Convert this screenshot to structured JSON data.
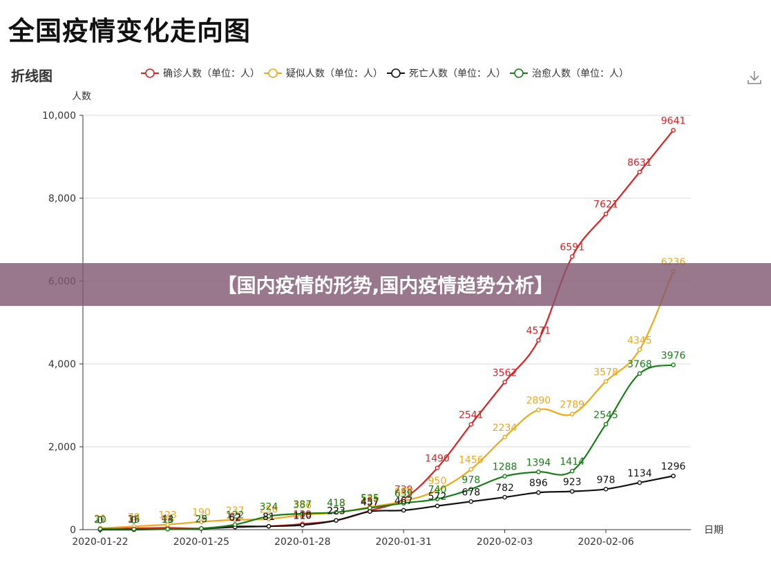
{
  "page_title": "全国疫情变化走向图",
  "banner_text": "【国内疫情的形势,国内疫情趋势分析】",
  "icons": {
    "download": "download-icon"
  },
  "chart_data": {
    "type": "line",
    "title": "折线图",
    "ylabel": "人数",
    "xlabel": "日期",
    "ylim": [
      0,
      10000
    ],
    "yticks": [
      0,
      2000,
      4000,
      6000,
      8000,
      10000
    ],
    "ytick_labels": [
      "0",
      "2,000",
      "4,000",
      "6,000",
      "8,000",
      "10,000"
    ],
    "x": [
      "2020-01-22",
      "2020-01-23",
      "2020-01-24",
      "2020-01-25",
      "2020-01-26",
      "2020-01-27",
      "2020-01-28",
      "2020-01-29",
      "2020-01-30",
      "2020-01-31",
      "2020-02-01",
      "2020-02-02",
      "2020-02-03",
      "2020-02-04",
      "2020-02-05",
      "2020-02-06",
      "2020-02-07",
      "2020-02-08"
    ],
    "x_tick_labels": [
      "2020-01-22",
      "2020-01-25",
      "2020-01-28",
      "2020-01-31",
      "2020-02-03",
      "2020-02-06"
    ],
    "x_tick_indices": [
      0,
      3,
      6,
      9,
      12,
      15
    ],
    "legend_position": "top-center",
    "grid": true,
    "series": [
      {
        "name": "确诊人数（单位：人）",
        "color": "#e01f1f",
        "values": [
          31,
          34,
          44,
          29,
          82,
          81,
          139,
          223,
          457,
          739,
          1490,
          2541,
          3562,
          4571,
          6591,
          7621,
          8631,
          9641
        ]
      },
      {
        "name": "疑似人数（单位：人）",
        "color": "#f0a818",
        "values": [
          31,
          78,
          123,
          190,
          237,
          256,
          356,
          413,
          545,
          689,
          950,
          1456,
          2234,
          2890,
          2789,
          3578,
          4345,
          6236
        ]
      },
      {
        "name": "死亡人数（单位：人）",
        "color": "#111111",
        "values": [
          0,
          0,
          13,
          25,
          62,
          81,
          110,
          223,
          437,
          467,
          572,
          678,
          782,
          896,
          923,
          978,
          1134,
          1296
        ]
      },
      {
        "name": "治愈人数（单位：人）",
        "color": "#148014",
        "values": [
          20,
          15,
          14,
          29,
          122,
          324,
          387,
          418,
          525,
          639,
          740,
          978,
          1288,
          1394,
          1414,
          2545,
          3768,
          3976
        ]
      }
    ]
  }
}
